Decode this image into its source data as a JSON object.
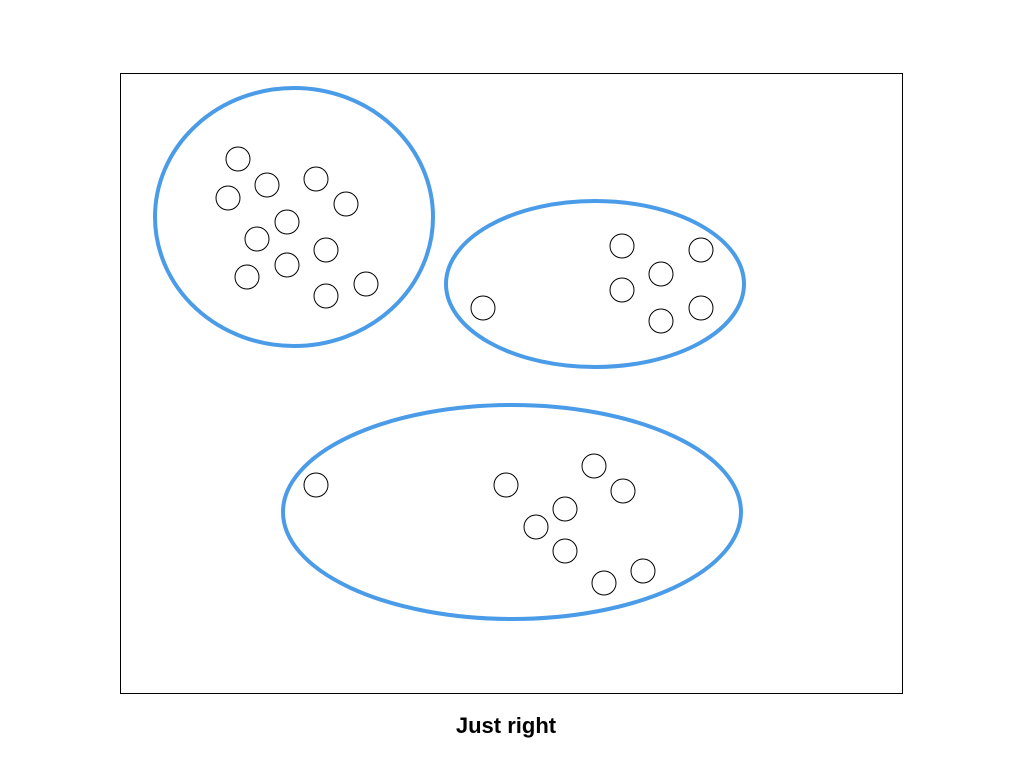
{
  "caption": "Just right",
  "cluster_color": "#4a9be8",
  "point_stroke": "#000000",
  "frame_stroke": "#000000"
}
